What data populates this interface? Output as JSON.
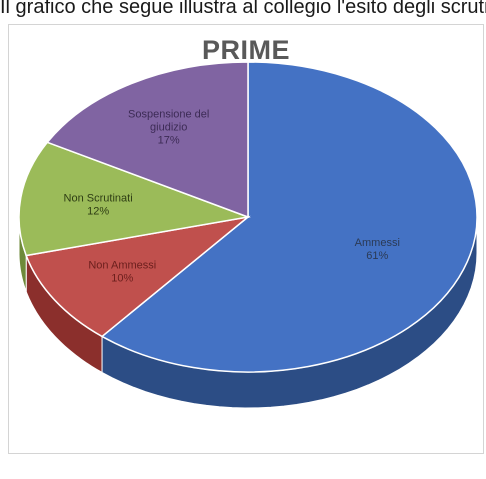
{
  "page": {
    "top_text": "Il grafico che segue illustra al collegio l'esito degli scrutini"
  },
  "chart_data": {
    "type": "pie",
    "title": "PRIME",
    "three_d": true,
    "start_angle_deg": -90,
    "slices": [
      {
        "label": "Ammessi",
        "value": 61,
        "value_label": "61%",
        "color": "#4472c4",
        "side_color": "#2c4d85",
        "label_color": "#2b3a55"
      },
      {
        "label": "Non Ammessi",
        "value": 10,
        "value_label": "10%",
        "color": "#c0504d",
        "side_color": "#8b2f2c",
        "label_color": "#6b1f1d"
      },
      {
        "label": "Non Scrutinati",
        "value": 12,
        "value_label": "12%",
        "color": "#9bbb59",
        "side_color": "#6e8a3a",
        "label_color": "#2e3d14"
      },
      {
        "label": "Sospensione del giudizio",
        "value": 17,
        "value_label": "17%",
        "color": "#8064a2",
        "side_color": "#58437a",
        "label_color": "#3c2b55"
      }
    ]
  }
}
